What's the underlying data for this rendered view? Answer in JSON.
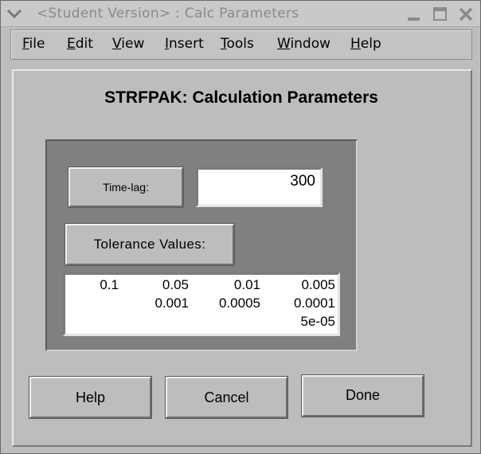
{
  "window": {
    "title": "<Student Version> : Calc Parameters",
    "icons": {
      "menu": "chevron-down-icon",
      "minimize": "minimize-icon",
      "maximize": "maximize-icon",
      "close": "close-icon"
    }
  },
  "menubar": {
    "items": [
      {
        "label_ul": "F",
        "label_rest": "ile"
      },
      {
        "label_ul": "E",
        "label_rest": "dit"
      },
      {
        "label_ul": "V",
        "label_rest": "iew"
      },
      {
        "label_ul": "I",
        "label_rest": "nsert"
      },
      {
        "label_ul": "T",
        "label_rest": "ools"
      },
      {
        "label_ul": "W",
        "label_rest": "indow"
      },
      {
        "label_ul": "H",
        "label_rest": "elp"
      }
    ]
  },
  "main": {
    "heading": "STRFPAK: Calculation Parameters",
    "timelag_button": "Time-lag:",
    "timelag_value": "300",
    "tolerance_button": "Tolerance Values:",
    "tolerance_values": [
      "0.1",
      "0.05",
      "0.01",
      "0.005",
      "0.001",
      "0.0005",
      "0.0001",
      "5e-05"
    ]
  },
  "footer": {
    "help_label": "Help",
    "cancel_label": "Cancel",
    "done_label": "Done"
  },
  "colors": {
    "window_bg": "#bdbdbd",
    "inner_box_bg": "#808080",
    "field_bg": "#ffffff",
    "title_text": "#8a8a8a"
  }
}
